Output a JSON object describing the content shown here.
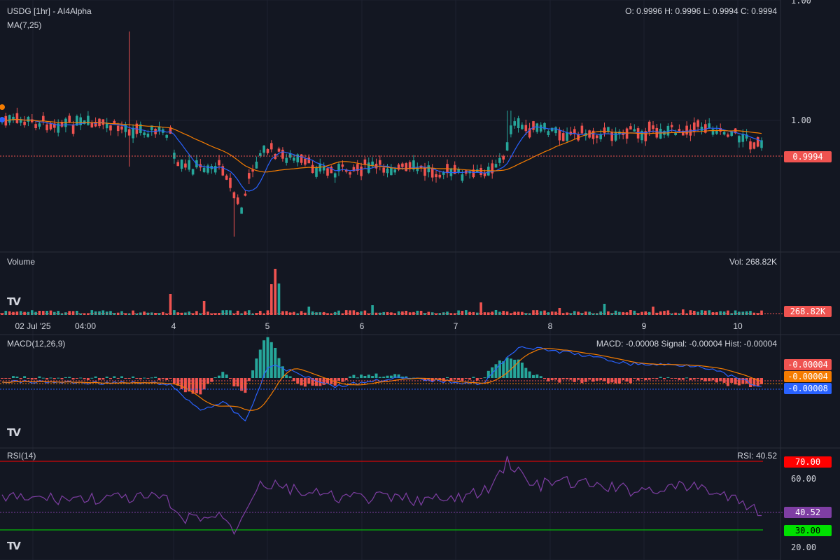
{
  "header": {
    "title": "USDG [1hr] - AI4Alpha",
    "ohlc": "O: 0.9996 H: 0.9996 L: 0.9994 C: 0.9994",
    "ma_label": "MA(7,25)"
  },
  "volume_panel": {
    "label": "Volume",
    "readout": "Vol: 268.82K",
    "badge": "268.82K"
  },
  "macd_panel": {
    "label": "MACD(12,26,9)",
    "readout": "MACD: -0.00008 Signal: -0.00004 Hist: -0.00004",
    "badges": [
      "-0.00004",
      "-0.00004",
      "-0.00008"
    ]
  },
  "rsi_panel": {
    "label": "RSI(14)",
    "readout": "RSI: 40.52",
    "badges": [
      "70.00",
      "40.52",
      "30.00"
    ],
    "ticks": [
      "60.00",
      "20.00"
    ]
  },
  "price_axis": {
    "ticks": [
      "1.00",
      "1.00"
    ],
    "last_price_badge": "0.9994"
  },
  "time_axis": [
    "02 Jul '25",
    "04:00",
    "4",
    "5",
    "6",
    "7",
    "8",
    "9",
    "10"
  ],
  "colors": {
    "background": "#131722",
    "up": "#26a69a",
    "down": "#ef5350",
    "ma_fast": "#2962ff",
    "ma_slow": "#f57c00",
    "rsi": "#7e3ea3",
    "rsi_upper": "#ff0000",
    "rsi_lower": "#00e000"
  },
  "chart_data": [
    {
      "type": "candlestick",
      "symbol": "USDG",
      "interval": "1hr",
      "last": {
        "open": 0.9996,
        "high": 0.9996,
        "low": 0.9994,
        "close": 0.9994
      },
      "x_labels": [
        "02 Jul '25",
        "04:00",
        "4",
        "5",
        "6",
        "7",
        "8",
        "9",
        "10"
      ],
      "bars": 204,
      "y_ticks": [
        1.0,
        1.0
      ],
      "ma_periods": [
        7,
        25
      ]
    },
    {
      "type": "bar",
      "name": "Volume",
      "last_value": "268.82K"
    },
    {
      "type": "line",
      "name": "MACD(12,26,9)",
      "macd": -8e-05,
      "signal": -4e-05,
      "hist": -4e-05
    },
    {
      "type": "line",
      "name": "RSI(14)",
      "last_value": 40.52,
      "upper_band": 70,
      "lower_band": 30,
      "y_ticks": [
        60,
        20
      ]
    }
  ]
}
